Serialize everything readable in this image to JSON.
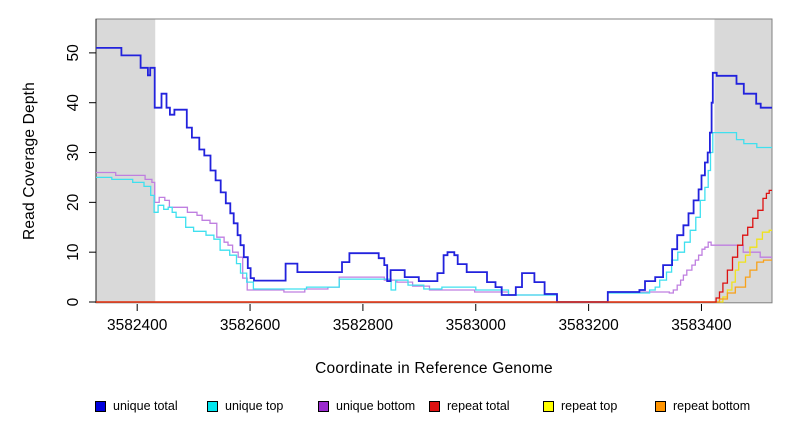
{
  "chart_data": {
    "type": "line",
    "title": "",
    "xlabel": "Coordinate in Reference Genome",
    "ylabel": "Read Coverage Depth",
    "xlim": [
      3582327,
      3583525
    ],
    "ylim": [
      0,
      56.8
    ],
    "x_ticks": [
      3582400,
      3582600,
      3582800,
      3583000,
      3583200,
      3583400
    ],
    "y_ticks": [
      0,
      10,
      20,
      30,
      40,
      50
    ],
    "grid": false,
    "legend_position": "bottom",
    "step_interpolation": true,
    "background_color": "#ffffff",
    "band_color": "#d9d9d9",
    "border_color": "#808080",
    "shaded_regions": [
      {
        "x0": 3582327,
        "x1": 3582432
      },
      {
        "x0": 3583423,
        "x1": 3583525
      }
    ],
    "draw_order": [
      2,
      1,
      0,
      4,
      5,
      3
    ],
    "series": [
      {
        "name": "unique total",
        "color": "#0000dd",
        "line_color": "#2222dd",
        "points": [
          [
            3582327,
            51
          ],
          [
            3582372,
            49.5
          ],
          [
            3582406,
            47
          ],
          [
            3582419,
            45.5
          ],
          [
            3582423,
            47
          ],
          [
            3582431,
            39
          ],
          [
            3582443,
            41.8
          ],
          [
            3582452,
            39
          ],
          [
            3582458,
            37.6
          ],
          [
            3582466,
            38.6
          ],
          [
            3582488,
            35
          ],
          [
            3582497,
            33
          ],
          [
            3582510,
            30.6
          ],
          [
            3582519,
            29.4
          ],
          [
            3582530,
            26.4
          ],
          [
            3582539,
            24.4
          ],
          [
            3582548,
            22
          ],
          [
            3582557,
            19.8
          ],
          [
            3582565,
            17.8
          ],
          [
            3582571,
            15.8
          ],
          [
            3582578,
            13.4
          ],
          [
            3582583,
            11.4
          ],
          [
            3582589,
            9
          ],
          [
            3582596,
            6.8
          ],
          [
            3582601,
            4.8
          ],
          [
            3582607,
            4.3
          ],
          [
            3582663,
            7.7
          ],
          [
            3582684,
            6
          ],
          [
            3582763,
            8
          ],
          [
            3582776,
            9.8
          ],
          [
            3582828,
            8.8
          ],
          [
            3582838,
            7.4
          ],
          [
            3582843,
            4.2
          ],
          [
            3582849,
            6.4
          ],
          [
            3582874,
            5
          ],
          [
            3582899,
            4.2
          ],
          [
            3582932,
            5.8
          ],
          [
            3582943,
            9.4
          ],
          [
            3582950,
            10
          ],
          [
            3582962,
            9.4
          ],
          [
            3582968,
            7.6
          ],
          [
            3582984,
            6
          ],
          [
            3583020,
            4
          ],
          [
            3583035,
            3
          ],
          [
            3583046,
            1.4
          ],
          [
            3583071,
            3
          ],
          [
            3583082,
            5.8
          ],
          [
            3583104,
            4
          ],
          [
            3583122,
            1.6
          ],
          [
            3583144,
            0
          ],
          [
            3583234,
            2
          ],
          [
            3583290,
            2.4
          ],
          [
            3583300,
            4.2
          ],
          [
            3583318,
            5
          ],
          [
            3583332,
            7.4
          ],
          [
            3583348,
            10.6
          ],
          [
            3583357,
            13.4
          ],
          [
            3583368,
            15.4
          ],
          [
            3583377,
            17.8
          ],
          [
            3583386,
            20.4
          ],
          [
            3583395,
            22.6
          ],
          [
            3583400,
            25.4
          ],
          [
            3583406,
            28
          ],
          [
            3583411,
            30
          ],
          [
            3583415,
            34
          ],
          [
            3583418,
            40
          ],
          [
            3583420,
            46
          ],
          [
            3583427,
            45.4
          ],
          [
            3583462,
            43.8
          ],
          [
            3583475,
            41.8
          ],
          [
            3583497,
            39.8
          ],
          [
            3583505,
            39
          ]
        ]
      },
      {
        "name": "unique top",
        "color": "#00e5ee",
        "line_color": "#3fe0ef",
        "points": [
          [
            3582327,
            25
          ],
          [
            3582355,
            24.6
          ],
          [
            3582392,
            24
          ],
          [
            3582412,
            23.2
          ],
          [
            3582424,
            21.4
          ],
          [
            3582430,
            18
          ],
          [
            3582437,
            19.4
          ],
          [
            3582447,
            18.6
          ],
          [
            3582455,
            19
          ],
          [
            3582462,
            18
          ],
          [
            3582469,
            17
          ],
          [
            3582486,
            15
          ],
          [
            3582500,
            14.2
          ],
          [
            3582522,
            13.4
          ],
          [
            3582536,
            12.6
          ],
          [
            3582547,
            10.4
          ],
          [
            3582564,
            9.4
          ],
          [
            3582576,
            7.7
          ],
          [
            3582583,
            5.8
          ],
          [
            3582594,
            4
          ],
          [
            3582606,
            2.6
          ],
          [
            3582700,
            3
          ],
          [
            3582758,
            4.6
          ],
          [
            3582850,
            2.4
          ],
          [
            3582858,
            4.4
          ],
          [
            3582880,
            3.4
          ],
          [
            3582908,
            2.6
          ],
          [
            3582940,
            3
          ],
          [
            3583000,
            2.4
          ],
          [
            3583058,
            1.4
          ],
          [
            3583144,
            0
          ],
          [
            3583234,
            1.8
          ],
          [
            3583308,
            2.4
          ],
          [
            3583318,
            3
          ],
          [
            3583326,
            4.4
          ],
          [
            3583338,
            6
          ],
          [
            3583347,
            8.4
          ],
          [
            3583358,
            10
          ],
          [
            3583370,
            12
          ],
          [
            3583380,
            14.4
          ],
          [
            3583390,
            17
          ],
          [
            3583398,
            20.4
          ],
          [
            3583406,
            23
          ],
          [
            3583412,
            26.4
          ],
          [
            3583416,
            30
          ],
          [
            3583420,
            34
          ],
          [
            3583462,
            32.6
          ],
          [
            3583475,
            31.8
          ],
          [
            3583498,
            31
          ]
        ]
      },
      {
        "name": "unique bottom",
        "color": "#9a2acd",
        "line_color": "#bf7fe0",
        "points": [
          [
            3582327,
            26
          ],
          [
            3582362,
            25.4
          ],
          [
            3582414,
            24.6
          ],
          [
            3582426,
            24
          ],
          [
            3582431,
            20
          ],
          [
            3582439,
            21
          ],
          [
            3582449,
            20.4
          ],
          [
            3582457,
            19
          ],
          [
            3582489,
            18
          ],
          [
            3582506,
            17.4
          ],
          [
            3582515,
            16.4
          ],
          [
            3582529,
            15.8
          ],
          [
            3582541,
            13
          ],
          [
            3582554,
            12
          ],
          [
            3582561,
            11.4
          ],
          [
            3582569,
            10
          ],
          [
            3582579,
            9
          ],
          [
            3582587,
            4.8
          ],
          [
            3582595,
            2.4
          ],
          [
            3582660,
            2
          ],
          [
            3582697,
            2.6
          ],
          [
            3582738,
            3
          ],
          [
            3582758,
            5
          ],
          [
            3582838,
            4.4
          ],
          [
            3582860,
            4
          ],
          [
            3582888,
            3.2
          ],
          [
            3582918,
            2.4
          ],
          [
            3582998,
            2
          ],
          [
            3583058,
            1.4
          ],
          [
            3583144,
            0
          ],
          [
            3583234,
            2
          ],
          [
            3583343,
            1.8
          ],
          [
            3583350,
            2.4
          ],
          [
            3583357,
            3.4
          ],
          [
            3583363,
            4.4
          ],
          [
            3583368,
            5.4
          ],
          [
            3583374,
            6.4
          ],
          [
            3583383,
            7.4
          ],
          [
            3583389,
            8.4
          ],
          [
            3583395,
            9.4
          ],
          [
            3583401,
            10.6
          ],
          [
            3583406,
            11
          ],
          [
            3583412,
            12
          ],
          [
            3583417,
            11.4
          ],
          [
            3583474,
            10
          ],
          [
            3583504,
            9
          ]
        ]
      },
      {
        "name": "repeat total",
        "color": "#dd1111",
        "line_color": "#dd1111",
        "points": [
          [
            3582327,
            0
          ],
          [
            3583426,
            0.8
          ],
          [
            3583432,
            2
          ],
          [
            3583438,
            3.8
          ],
          [
            3583446,
            6.4
          ],
          [
            3583455,
            9
          ],
          [
            3583464,
            11.4
          ],
          [
            3583473,
            13.4
          ],
          [
            3583482,
            15
          ],
          [
            3583491,
            16.8
          ],
          [
            3583500,
            18.4
          ],
          [
            3583509,
            20.8
          ],
          [
            3583515,
            21.8
          ],
          [
            3583520,
            22.4
          ]
        ]
      },
      {
        "name": "repeat top",
        "color": "#ffff00",
        "line_color": "#f0e21c",
        "points": [
          [
            3582327,
            0
          ],
          [
            3583438,
            1
          ],
          [
            3583446,
            2.4
          ],
          [
            3583454,
            4
          ],
          [
            3583460,
            6.4
          ],
          [
            3583466,
            8
          ],
          [
            3583478,
            9.4
          ],
          [
            3583486,
            11
          ],
          [
            3583498,
            12.6
          ],
          [
            3583508,
            14
          ],
          [
            3583520,
            14.4
          ]
        ]
      },
      {
        "name": "repeat bottom",
        "color": "#ff9400",
        "line_color": "#f7a11a",
        "points": [
          [
            3582327,
            0
          ],
          [
            3583432,
            0.6
          ],
          [
            3583446,
            1.8
          ],
          [
            3583460,
            3
          ],
          [
            3583478,
            5
          ],
          [
            3583486,
            6.4
          ],
          [
            3583498,
            8
          ],
          [
            3583510,
            8.4
          ]
        ]
      }
    ]
  }
}
